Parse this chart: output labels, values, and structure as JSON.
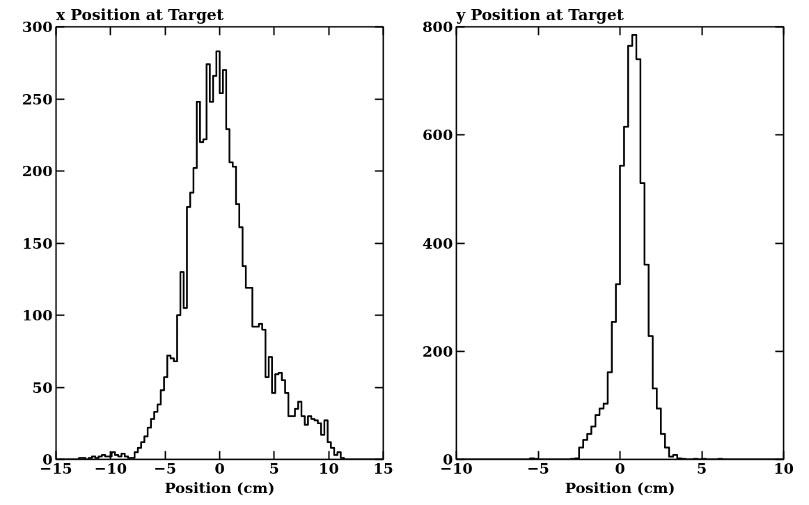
{
  "chart_data": [
    {
      "type": "histogram",
      "title": "x Position at Target",
      "xlabel": "Position (cm)",
      "color": "#000000",
      "bins": [
        -15,
        -14.7,
        -14.4,
        -14.1,
        -13.8,
        -13.5,
        -13.2,
        -12.9,
        -12.6,
        -12.3,
        -12,
        -11.7,
        -11.4,
        -11.1,
        -10.8,
        -10.5,
        -10.2,
        -9.9,
        -9.6,
        -9.3,
        -9,
        -8.7,
        -8.4,
        -8.1,
        -7.8,
        -7.5,
        -7.2,
        -6.9,
        -6.6,
        -6.3,
        -6,
        -5.7,
        -5.4,
        -5.1,
        -4.8,
        -4.5,
        -4.2,
        -3.9,
        -3.6,
        -3.3,
        -3,
        -2.7,
        -2.4,
        -2.1,
        -1.8,
        -1.5,
        -1.2,
        -0.9,
        -0.6,
        -0.3,
        0,
        0.3,
        0.6,
        0.9,
        1.2,
        1.5,
        1.8,
        2.1,
        2.4,
        2.7,
        3,
        3.3,
        3.6,
        3.9,
        4.2,
        4.5,
        4.8,
        5.1,
        5.4,
        5.7,
        6,
        6.3,
        6.6,
        6.9,
        7.2,
        7.5,
        7.8,
        8.1,
        8.4,
        8.7,
        9,
        9.3,
        9.6,
        9.9,
        10.2,
        10.5,
        10.8,
        11.1,
        11.4,
        11.7,
        12,
        12.3,
        12.6,
        12.9,
        13.2,
        13.5,
        13.8,
        14.1,
        14.4,
        14.7,
        15
      ],
      "values": [
        0,
        0,
        0,
        0,
        0,
        0,
        0,
        1,
        1,
        0,
        1,
        2,
        1,
        2,
        3,
        2,
        2,
        5,
        3,
        2,
        4,
        2,
        1,
        1,
        5,
        8,
        12,
        16,
        22,
        28,
        33,
        38,
        48,
        57,
        72,
        70,
        68,
        100,
        130,
        105,
        175,
        185,
        202,
        248,
        220,
        222,
        274,
        248,
        266,
        283,
        254,
        270,
        229,
        206,
        203,
        177,
        161,
        134,
        119,
        119,
        92,
        92,
        94,
        90,
        57,
        71,
        46,
        59,
        60,
        55,
        46,
        30,
        30,
        35,
        40,
        30,
        24,
        30,
        28,
        27,
        25,
        17,
        27,
        12,
        8,
        3,
        5,
        1,
        0,
        0,
        0,
        0,
        0,
        0,
        0,
        0,
        0,
        0,
        0,
        0
      ],
      "xlim": [
        -15,
        15
      ],
      "ylim": [
        0,
        300
      ],
      "xticks": [
        -15,
        -10,
        -5,
        0,
        5,
        10,
        15
      ],
      "yticks": [
        0,
        50,
        100,
        150,
        200,
        250,
        300
      ],
      "grid": false
    },
    {
      "type": "histogram",
      "title": "y Position at Target",
      "xlabel": "Position (cm)",
      "color": "#000000",
      "bins": [
        -10,
        -9.75,
        -9.5,
        -9.25,
        -9,
        -8.75,
        -8.5,
        -8.25,
        -8,
        -7.75,
        -7.5,
        -7.25,
        -7,
        -6.75,
        -6.5,
        -6.25,
        -6,
        -5.75,
        -5.5,
        -5.25,
        -5,
        -4.75,
        -4.5,
        -4.25,
        -4,
        -3.75,
        -3.5,
        -3.25,
        -3,
        -2.75,
        -2.5,
        -2.25,
        -2,
        -1.75,
        -1.5,
        -1.25,
        -1,
        -0.75,
        -0.5,
        -0.25,
        0,
        0.25,
        0.5,
        0.75,
        1,
        1.25,
        1.5,
        1.75,
        2,
        2.25,
        2.5,
        2.75,
        3,
        3.25,
        3.5,
        3.75,
        4,
        4.25,
        4.5,
        4.75,
        5,
        5.25,
        5.5,
        5.75,
        6,
        6.25,
        6.5,
        6.75,
        7,
        7.25,
        7.5,
        7.75,
        8,
        8.25,
        8.5,
        8.75,
        9,
        9.25,
        9.5,
        9.75,
        10
      ],
      "values": [
        0,
        0,
        0,
        0,
        0,
        0,
        0,
        0,
        0,
        0,
        0,
        0,
        0,
        0,
        0,
        0,
        0,
        0,
        2,
        1,
        0,
        0,
        0,
        0,
        0,
        0,
        0,
        0,
        1,
        2,
        22,
        36,
        47,
        61,
        82,
        94,
        103,
        161,
        254,
        324,
        543,
        615,
        765,
        785,
        740,
        511,
        360,
        228,
        131,
        94,
        47,
        22,
        5,
        8,
        2,
        1,
        0,
        0,
        1,
        0,
        1,
        0,
        0,
        0,
        1,
        0,
        0,
        0,
        0,
        0,
        0,
        0,
        0,
        0,
        0,
        0,
        0,
        0,
        0,
        0
      ],
      "xlim": [
        -10,
        10
      ],
      "ylim": [
        0,
        800
      ],
      "xticks": [
        -10,
        -5,
        0,
        5,
        10
      ],
      "yticks": [
        0,
        200,
        400,
        600,
        800
      ],
      "grid": false
    }
  ]
}
